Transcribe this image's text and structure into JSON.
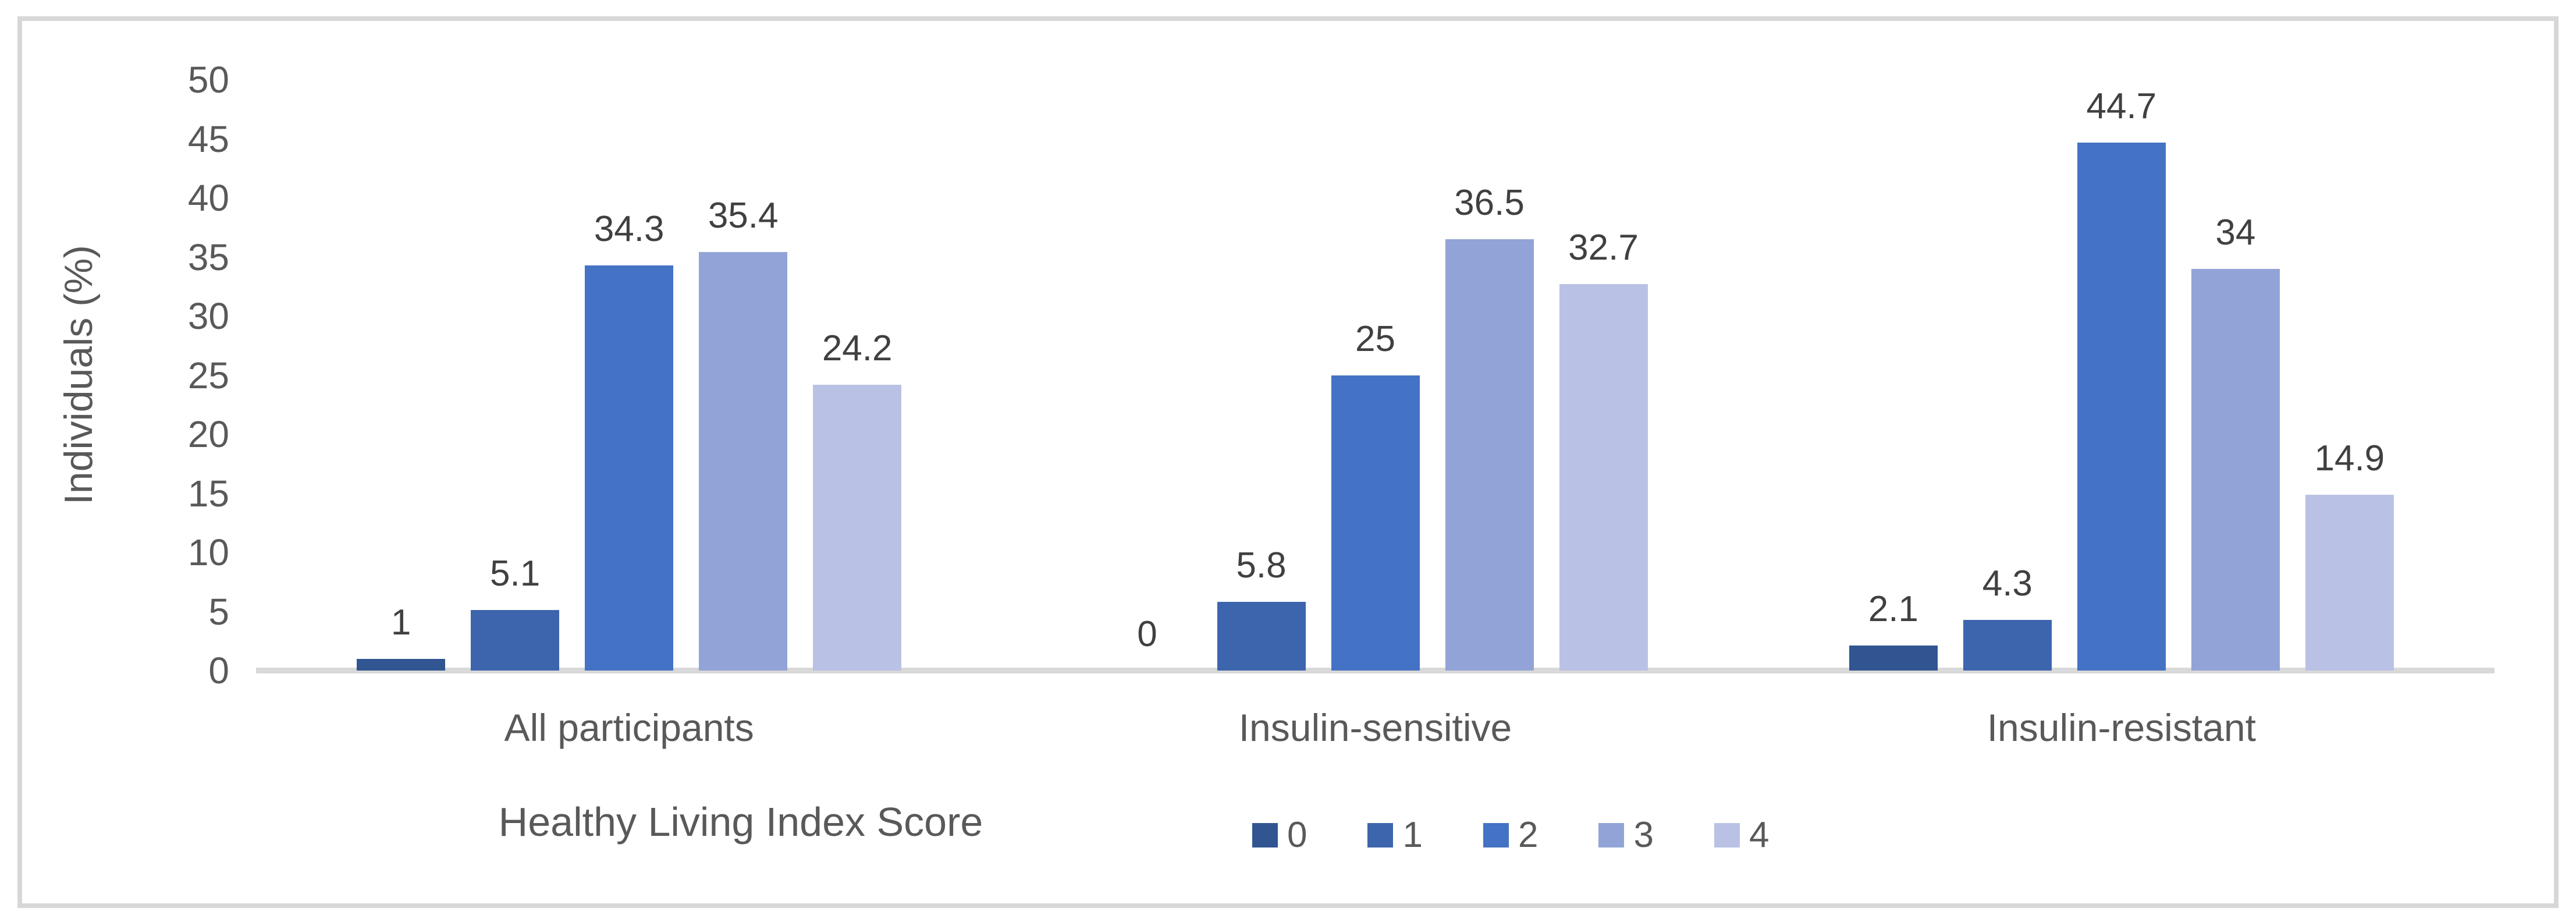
{
  "chart_data": {
    "type": "bar",
    "title": "",
    "ylabel": "Individuals (%)",
    "xlabel": "Healthy Living Index Score",
    "categories": [
      "All participants",
      "Insulin-sensitive",
      "Insulin-resistant"
    ],
    "series": [
      {
        "name": "0",
        "color": "#315591",
        "values": [
          1,
          0,
          2.1
        ]
      },
      {
        "name": "1",
        "color": "#3D65AE",
        "values": [
          5.1,
          5.8,
          4.3
        ]
      },
      {
        "name": "2",
        "color": "#4472C4",
        "values": [
          34.3,
          25,
          44.7
        ]
      },
      {
        "name": "3",
        "color": "#92A3D7",
        "values": [
          35.4,
          36.5,
          34
        ]
      },
      {
        "name": "4",
        "color": "#B9C2E4",
        "values": [
          24.2,
          32.7,
          14.9
        ]
      }
    ],
    "data_labels": [
      [
        "1",
        "5.1",
        "34.3",
        "35.4",
        "24.2"
      ],
      [
        "0",
        "5.8",
        "25",
        "36.5",
        "32.7"
      ],
      [
        "2.1",
        "4.3",
        "44.7",
        "34",
        "14.9"
      ]
    ],
    "ylim": [
      0,
      50
    ],
    "ytick_step": 5,
    "yticks": [
      "0",
      "5",
      "10",
      "15",
      "20",
      "25",
      "30",
      "35",
      "40",
      "45",
      "50"
    ],
    "legend": {
      "position": "bottom",
      "labels": [
        "0",
        "1",
        "2",
        "3",
        "4"
      ]
    },
    "grid": false
  },
  "styles": {
    "background": "#FFFFFF",
    "border_color": "#D7D7D7",
    "axis_line_color": "#D9D9D9",
    "tick_text_color": "#595959",
    "data_label_color": "#404040"
  }
}
